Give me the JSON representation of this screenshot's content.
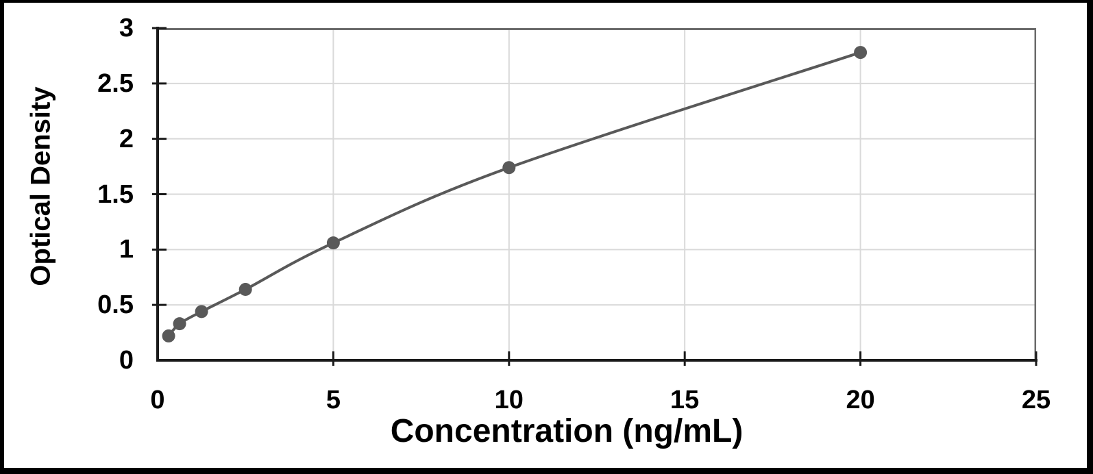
{
  "chart_data": {
    "type": "scatter",
    "title": "",
    "xlabel": "Concentration (ng/mL)",
    "ylabel": "Optical Density",
    "xlim": [
      0,
      25
    ],
    "ylim": [
      0,
      3
    ],
    "x_ticks": [
      0,
      5,
      10,
      15,
      20,
      25
    ],
    "y_ticks": [
      0,
      0.5,
      1,
      1.5,
      2,
      2.5,
      3
    ],
    "grid": true,
    "legend": false,
    "line_style": "smooth",
    "marker": "circle",
    "series": [
      {
        "points": [
          {
            "x": 0.313,
            "y": 0.22
          },
          {
            "x": 0.625,
            "y": 0.33
          },
          {
            "x": 1.25,
            "y": 0.44
          },
          {
            "x": 2.5,
            "y": 0.64
          },
          {
            "x": 5,
            "y": 1.06
          },
          {
            "x": 10,
            "y": 1.74
          },
          {
            "x": 20,
            "y": 2.78
          }
        ]
      }
    ],
    "colors": {
      "series": "#595959",
      "grid": "#d9d9d9",
      "axis": "#1a1a1a",
      "plot_border": "#6a6a6a",
      "text": "#000000",
      "frame": "#000000",
      "background": "#ffffff"
    }
  }
}
